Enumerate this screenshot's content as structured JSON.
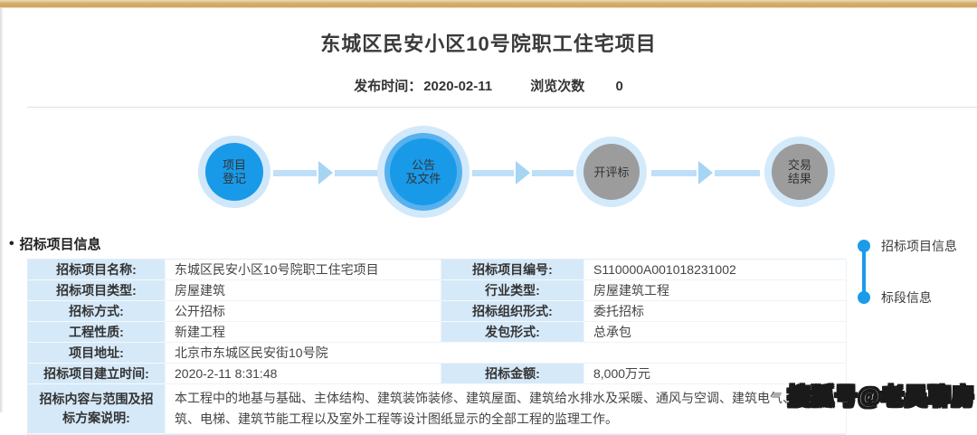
{
  "colors": {
    "accent_blue": "#189ae9",
    "halo_light_blue": "#cfe7fa",
    "inactive_gray": "#9c9c9c",
    "top_bar_tan": "#d5ae6c",
    "label_cell_bg": "#d6e9f8"
  },
  "header": {
    "title": "东城区民安小区10号院职工住宅项目",
    "publish_label": "发布时间：",
    "publish_date": "2020-02-11",
    "views_label": "浏览次数",
    "views_count": "0"
  },
  "flow": {
    "steps": [
      {
        "line1": "项目",
        "line2": "登记",
        "state": "done"
      },
      {
        "line1": "公告",
        "line2": "及文件",
        "state": "current"
      },
      {
        "line1": "开评标",
        "line2": "",
        "state": "todo"
      },
      {
        "line1": "交易",
        "line2": "结果",
        "state": "todo"
      }
    ]
  },
  "section": {
    "bullet": "•",
    "title": "招标项目信息"
  },
  "table": {
    "rows": [
      {
        "cells": [
          {
            "text": "招标项目名称:"
          },
          {
            "text": "东城区民安小区10号院职工住宅项目"
          },
          {
            "text": "招标项目编号:"
          },
          {
            "text": "S110000A001018231002"
          }
        ]
      },
      {
        "cells": [
          {
            "text": "招标项目类型:"
          },
          {
            "text": "房屋建筑"
          },
          {
            "text": "行业类型:"
          },
          {
            "text": "房屋建筑工程"
          }
        ]
      },
      {
        "cells": [
          {
            "text": "招标方式:"
          },
          {
            "text": "公开招标"
          },
          {
            "text": "招标组织形式:"
          },
          {
            "text": "委托招标"
          }
        ]
      },
      {
        "cells": [
          {
            "text": "工程性质:"
          },
          {
            "text": "新建工程"
          },
          {
            "text": "发包形式:"
          },
          {
            "text": "总承包"
          }
        ]
      },
      {
        "cells": [
          {
            "text": "项目地址:"
          },
          {
            "text": "北京市东城区民安街10号院"
          }
        ]
      },
      {
        "cells": [
          {
            "text": "招标项目建立时间:"
          },
          {
            "text": "2020-2-11 8:31:48"
          },
          {
            "text": "招标金额:"
          },
          {
            "text": "8,000万元"
          }
        ]
      },
      {
        "cells": [
          {
            "text": "招标内容与范围及招标方案说明:"
          },
          {
            "text": "本工程中的地基与基础、主体结构、建筑装饰装修、建筑屋面、建筑给水排水及采暖、通风与空调、建筑电气、智能建筑、电梯、建筑节能工程以及室外工程等设计图纸显示的全部工程的监理工作。"
          }
        ]
      }
    ]
  },
  "side_nav": {
    "items": [
      {
        "label": "招标项目信息"
      },
      {
        "label": "标段信息"
      }
    ]
  },
  "watermark": {
    "text": "搜狐号@老吴聊房"
  }
}
